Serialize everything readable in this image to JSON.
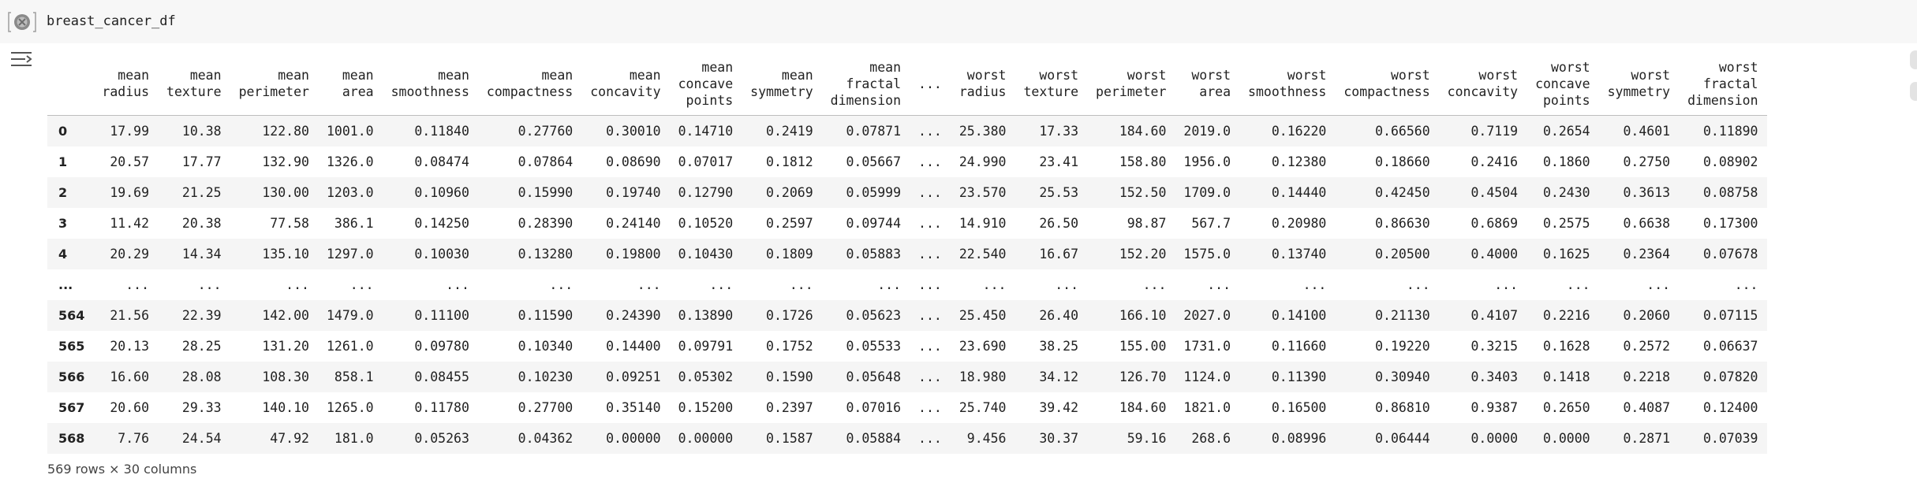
{
  "cell": {
    "code": "breast_cancer_df"
  },
  "table": {
    "columns": [
      [
        "mean",
        "radius"
      ],
      [
        "mean",
        "texture"
      ],
      [
        "mean",
        "perimeter"
      ],
      [
        "mean",
        "area"
      ],
      [
        "mean",
        "smoothness"
      ],
      [
        "mean",
        "compactness"
      ],
      [
        "mean",
        "concavity"
      ],
      [
        "mean",
        "concave",
        "points"
      ],
      [
        "mean",
        "symmetry"
      ],
      [
        "mean",
        "fractal",
        "dimension"
      ],
      [
        "..."
      ],
      [
        "worst",
        "radius"
      ],
      [
        "worst",
        "texture"
      ],
      [
        "worst",
        "perimeter"
      ],
      [
        "worst",
        "area"
      ],
      [
        "worst",
        "smoothness"
      ],
      [
        "worst",
        "compactness"
      ],
      [
        "worst",
        "concavity"
      ],
      [
        "worst",
        "concave",
        "points"
      ],
      [
        "worst",
        "symmetry"
      ],
      [
        "worst",
        "fractal",
        "dimension"
      ]
    ],
    "rows": [
      {
        "index": "0",
        "values": [
          "17.99",
          "10.38",
          "122.80",
          "1001.0",
          "0.11840",
          "0.27760",
          "0.30010",
          "0.14710",
          "0.2419",
          "0.07871",
          "...",
          "25.380",
          "17.33",
          "184.60",
          "2019.0",
          "0.16220",
          "0.66560",
          "0.7119",
          "0.2654",
          "0.4601",
          "0.11890"
        ]
      },
      {
        "index": "1",
        "values": [
          "20.57",
          "17.77",
          "132.90",
          "1326.0",
          "0.08474",
          "0.07864",
          "0.08690",
          "0.07017",
          "0.1812",
          "0.05667",
          "...",
          "24.990",
          "23.41",
          "158.80",
          "1956.0",
          "0.12380",
          "0.18660",
          "0.2416",
          "0.1860",
          "0.2750",
          "0.08902"
        ]
      },
      {
        "index": "2",
        "values": [
          "19.69",
          "21.25",
          "130.00",
          "1203.0",
          "0.10960",
          "0.15990",
          "0.19740",
          "0.12790",
          "0.2069",
          "0.05999",
          "...",
          "23.570",
          "25.53",
          "152.50",
          "1709.0",
          "0.14440",
          "0.42450",
          "0.4504",
          "0.2430",
          "0.3613",
          "0.08758"
        ]
      },
      {
        "index": "3",
        "values": [
          "11.42",
          "20.38",
          "77.58",
          "386.1",
          "0.14250",
          "0.28390",
          "0.24140",
          "0.10520",
          "0.2597",
          "0.09744",
          "...",
          "14.910",
          "26.50",
          "98.87",
          "567.7",
          "0.20980",
          "0.86630",
          "0.6869",
          "0.2575",
          "0.6638",
          "0.17300"
        ]
      },
      {
        "index": "4",
        "values": [
          "20.29",
          "14.34",
          "135.10",
          "1297.0",
          "0.10030",
          "0.13280",
          "0.19800",
          "0.10430",
          "0.1809",
          "0.05883",
          "...",
          "22.540",
          "16.67",
          "152.20",
          "1575.0",
          "0.13740",
          "0.20500",
          "0.4000",
          "0.1625",
          "0.2364",
          "0.07678"
        ]
      },
      {
        "index": "...",
        "values": [
          "...",
          "...",
          "...",
          "...",
          "...",
          "...",
          "...",
          "...",
          "...",
          "...",
          "...",
          "...",
          "...",
          "...",
          "...",
          "...",
          "...",
          "...",
          "...",
          "...",
          "..."
        ]
      },
      {
        "index": "564",
        "values": [
          "21.56",
          "22.39",
          "142.00",
          "1479.0",
          "0.11100",
          "0.11590",
          "0.24390",
          "0.13890",
          "0.1726",
          "0.05623",
          "...",
          "25.450",
          "26.40",
          "166.10",
          "2027.0",
          "0.14100",
          "0.21130",
          "0.4107",
          "0.2216",
          "0.2060",
          "0.07115"
        ]
      },
      {
        "index": "565",
        "values": [
          "20.13",
          "28.25",
          "131.20",
          "1261.0",
          "0.09780",
          "0.10340",
          "0.14400",
          "0.09791",
          "0.1752",
          "0.05533",
          "...",
          "23.690",
          "38.25",
          "155.00",
          "1731.0",
          "0.11660",
          "0.19220",
          "0.3215",
          "0.1628",
          "0.2572",
          "0.06637"
        ]
      },
      {
        "index": "566",
        "values": [
          "16.60",
          "28.08",
          "108.30",
          "858.1",
          "0.08455",
          "0.10230",
          "0.09251",
          "0.05302",
          "0.1590",
          "0.05648",
          "...",
          "18.980",
          "34.12",
          "126.70",
          "1124.0",
          "0.11390",
          "0.30940",
          "0.3403",
          "0.1418",
          "0.2218",
          "0.07820"
        ]
      },
      {
        "index": "567",
        "values": [
          "20.60",
          "29.33",
          "140.10",
          "1265.0",
          "0.11780",
          "0.27700",
          "0.35140",
          "0.15200",
          "0.2397",
          "0.07016",
          "...",
          "25.740",
          "39.42",
          "184.60",
          "1821.0",
          "0.16500",
          "0.86810",
          "0.9387",
          "0.2650",
          "0.4087",
          "0.12400"
        ]
      },
      {
        "index": "568",
        "values": [
          "7.76",
          "24.54",
          "47.92",
          "181.0",
          "0.05263",
          "0.04362",
          "0.00000",
          "0.00000",
          "0.1587",
          "0.05884",
          "...",
          "9.456",
          "30.37",
          "59.16",
          "268.6",
          "0.08996",
          "0.06444",
          "0.0000",
          "0.0000",
          "0.2871",
          "0.07039"
        ]
      }
    ],
    "footer": "569 rows × 30 columns"
  },
  "icons": {
    "run": "run-cell-icon",
    "output_toggle": "output-toggle-icon"
  },
  "colors": {
    "input_background": "#f7f7f7",
    "stripe": "#f5f5f5",
    "header_rule": "#bdbdbd"
  }
}
